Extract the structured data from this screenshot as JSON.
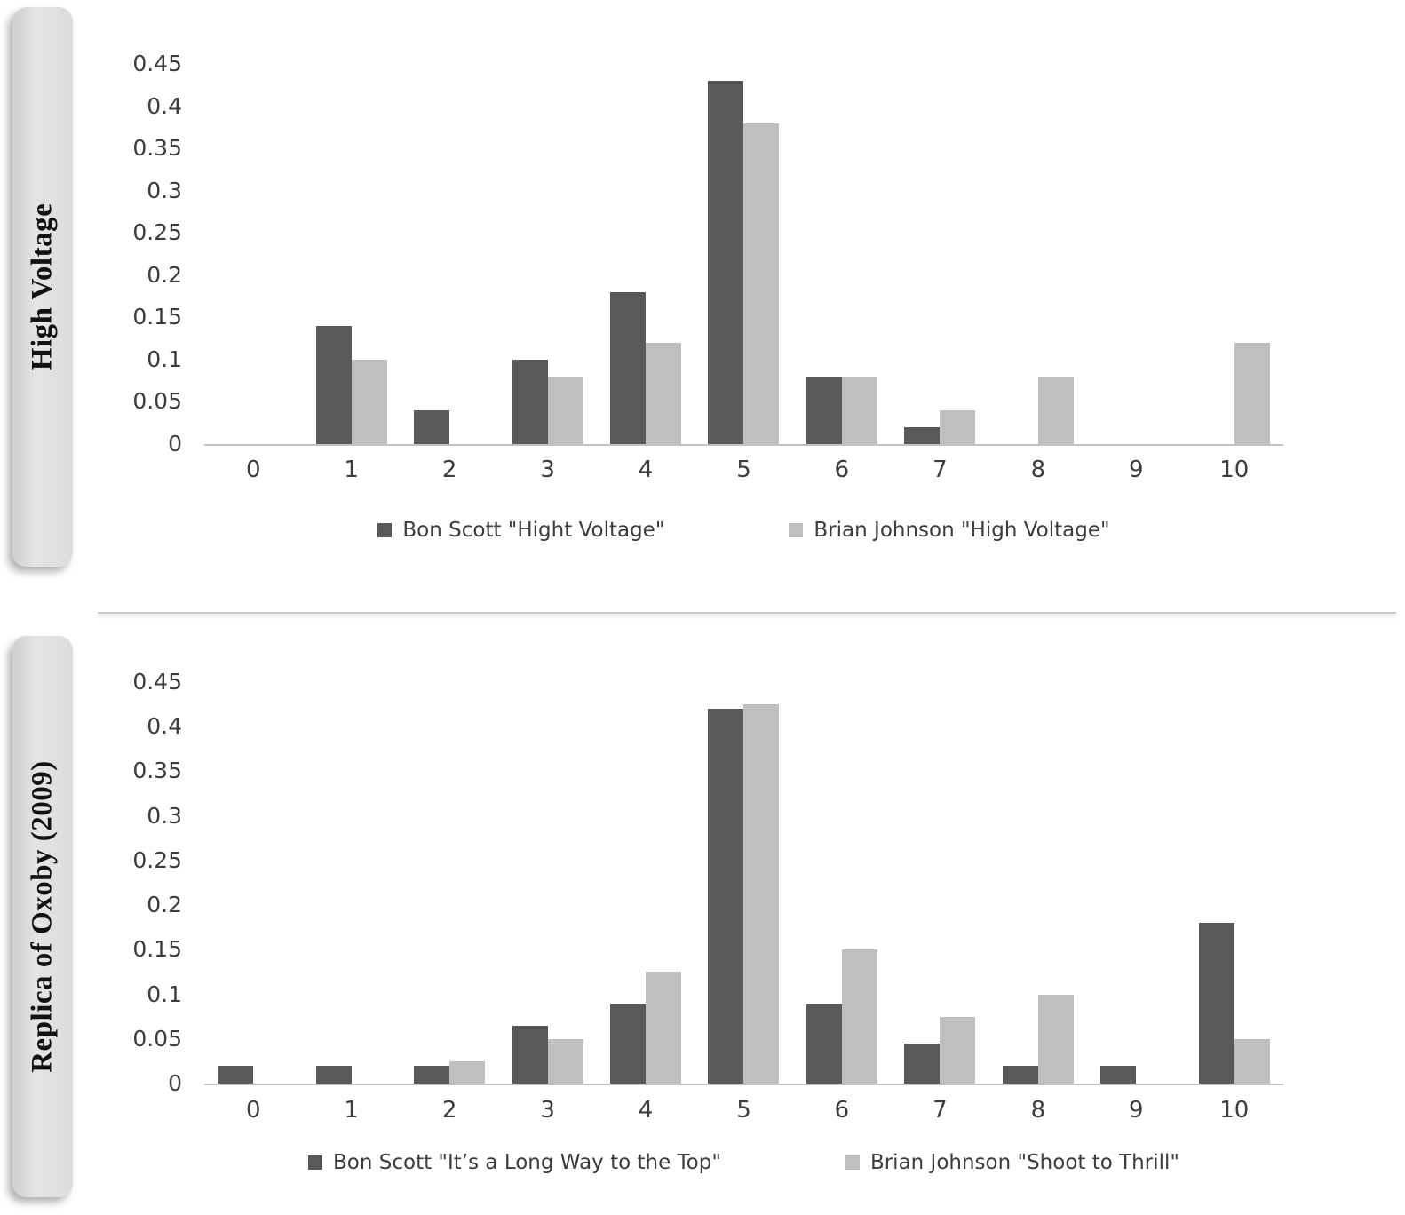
{
  "colors": {
    "series_dark": "#595959",
    "series_light": "#bfbfbf",
    "axis_line": "#c3c3c3",
    "tick_text": "#3d3d3d",
    "pill_background": "#dcdcdc",
    "divider": "#c9c9c9"
  },
  "chart_data": [
    {
      "type": "bar",
      "side_label": "High Voltage",
      "categories": [
        "0",
        "1",
        "2",
        "3",
        "4",
        "5",
        "6",
        "7",
        "8",
        "9",
        "10"
      ],
      "series": [
        {
          "name": "Bon Scott \"Hight Voltage\"",
          "color": "#595959",
          "values": [
            0,
            0.14,
            0.04,
            0.1,
            0.18,
            0.43,
            0.08,
            0.02,
            0,
            0,
            0
          ]
        },
        {
          "name": "Brian Johnson \"High Voltage\"",
          "color": "#bfbfbf",
          "values": [
            0,
            0.1,
            0,
            0.08,
            0.12,
            0.38,
            0.08,
            0.04,
            0.08,
            0,
            0.12
          ]
        }
      ],
      "ylim": [
        0,
        0.45
      ],
      "yticks": [
        "0.45",
        "0.4",
        "0.35",
        "0.3",
        "0.25",
        "0.2",
        "0.15",
        "0.1",
        "0.05",
        "0"
      ],
      "xlabel": "",
      "ylabel": "",
      "grid": false,
      "legend_position": "bottom"
    },
    {
      "type": "bar",
      "side_label": "Replica of Oxoby (2009)",
      "categories": [
        "0",
        "1",
        "2",
        "3",
        "4",
        "5",
        "6",
        "7",
        "8",
        "9",
        "10"
      ],
      "series": [
        {
          "name": "Bon Scott \"It’s a Long Way to the Top\"",
          "color": "#595959",
          "values": [
            0.02,
            0.02,
            0.02,
            0.065,
            0.09,
            0.42,
            0.09,
            0.045,
            0.02,
            0.02,
            0.18
          ]
        },
        {
          "name": "Brian Johnson \"Shoot to Thrill\"",
          "color": "#bfbfbf",
          "values": [
            0,
            0,
            0.025,
            0.05,
            0.125,
            0.425,
            0.15,
            0.075,
            0.1,
            0,
            0.05
          ]
        }
      ],
      "ylim": [
        0,
        0.45
      ],
      "yticks": [
        "0.45",
        "0.4",
        "0.35",
        "0.3",
        "0.25",
        "0.2",
        "0.15",
        "0.1",
        "0.05",
        "0"
      ],
      "xlabel": "",
      "ylabel": "",
      "grid": false,
      "legend_position": "bottom"
    }
  ]
}
